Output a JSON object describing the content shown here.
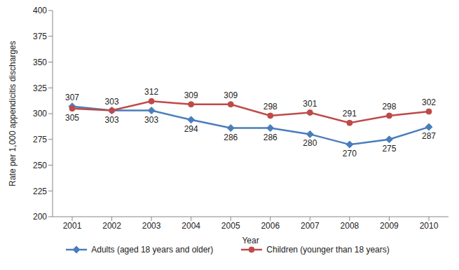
{
  "chart_data": {
    "type": "line",
    "categories": [
      "2001",
      "2002",
      "2003",
      "2004",
      "2005",
      "2006",
      "2007",
      "2008",
      "2009",
      "2010"
    ],
    "series": [
      {
        "name": "Adults (aged 18 years and older)",
        "color": "#4a7ebb",
        "marker": "diamond",
        "values": [
          307,
          303,
          303,
          294,
          286,
          286,
          280,
          270,
          275,
          287
        ]
      },
      {
        "name": "Children (younger than 18 years)",
        "color": "#be4b48",
        "marker": "circle",
        "values": [
          305,
          303,
          312,
          309,
          309,
          298,
          301,
          291,
          298,
          302
        ]
      }
    ],
    "x_label": "Year",
    "y_label": "Rate per 1,000 appendicitis discharges",
    "ylim": [
      200,
      400
    ],
    "yticks": [
      200,
      225,
      250,
      275,
      300,
      325,
      350,
      375,
      400
    ],
    "grid": false,
    "legend": "bottom",
    "data_labels": true
  }
}
